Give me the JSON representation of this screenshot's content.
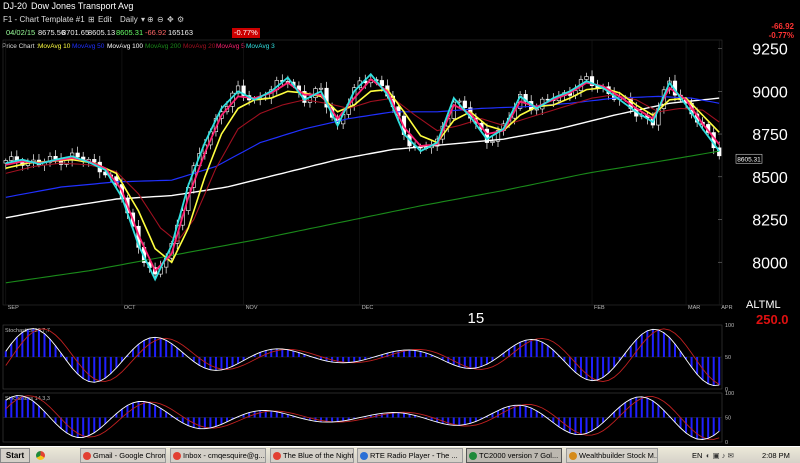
{
  "window": {
    "symbol": "DJ-20",
    "title": "Dow Jones Transport Avg"
  },
  "toolbar": {
    "template": "F1 - Chart Template #1",
    "edit": "Edit",
    "period": "Daily"
  },
  "quote": {
    "date": "04/02/15",
    "open": "8675.56",
    "high": "8701.65",
    "low": "8605.13",
    "last": "8605.31",
    "change": "-66.92",
    "volume": "165163",
    "pct": "-0.77%",
    "rt_change": "-66.92",
    "rt_pct": "-0.77%"
  },
  "legend": {
    "price_chart": "Price Chart :",
    "ma10": "MovAvg 10",
    "ma50": "MovAvg 50",
    "ma100": "MovAvg 100",
    "ma200": "MovAvg 200",
    "ma20": "MovAvg 20",
    "ma5": "MovAvg 5",
    "ma3": "MovAvg 3"
  },
  "colors": {
    "ma10": "#ffff40",
    "ma50": "#2030ff",
    "ma100": "#ffffff",
    "ma200": "#1a8a1a",
    "ma20": "#a01020",
    "ma5": "#ff2070",
    "ma3": "#30e0e0",
    "price": "#ffffff",
    "stoch_bar": "#2020ff"
  },
  "chart_data": {
    "type": "line",
    "x_tick_labels": [
      "SEP",
      "OCT",
      "NOV",
      "DEC",
      "15",
      "FEB",
      "MAR",
      "APR"
    ],
    "y_tick_labels": [
      "9250",
      "9000",
      "8750",
      "8500",
      "8250",
      "8000"
    ],
    "ylim": [
      7750,
      9300
    ],
    "price_marker": "8605.31",
    "overlay": "250.0",
    "overlay_label": "ALTML",
    "series": [
      {
        "name": "MovAvg 3",
        "points": [
          [
            0,
            8580
          ],
          [
            3,
            8600
          ],
          [
            6,
            8575
          ],
          [
            9,
            8600
          ],
          [
            12,
            8620
          ],
          [
            15,
            8585
          ],
          [
            18,
            8540
          ],
          [
            21,
            8380
          ],
          [
            24,
            8100
          ],
          [
            27,
            7900
          ],
          [
            30,
            8100
          ],
          [
            33,
            8450
          ],
          [
            36,
            8700
          ],
          [
            39,
            8900
          ],
          [
            42,
            9000
          ],
          [
            45,
            8950
          ],
          [
            48,
            9000
          ],
          [
            51,
            9080
          ],
          [
            54,
            8950
          ],
          [
            57,
            9000
          ],
          [
            60,
            8800
          ],
          [
            63,
            9000
          ],
          [
            66,
            9100
          ],
          [
            69,
            8980
          ],
          [
            72,
            8750
          ],
          [
            75,
            8650
          ],
          [
            78,
            8700
          ],
          [
            81,
            8960
          ],
          [
            84,
            8850
          ],
          [
            87,
            8720
          ],
          [
            90,
            8780
          ],
          [
            93,
            8970
          ],
          [
            96,
            8900
          ],
          [
            99,
            8960
          ],
          [
            102,
            9000
          ],
          [
            105,
            9060
          ],
          [
            108,
            9020
          ],
          [
            111,
            8950
          ],
          [
            114,
            8880
          ],
          [
            117,
            8820
          ],
          [
            120,
            9050
          ],
          [
            123,
            8920
          ],
          [
            126,
            8780
          ],
          [
            129,
            8650
          ]
        ]
      },
      {
        "name": "MovAvg 5",
        "points": [
          [
            0,
            8570
          ],
          [
            3,
            8590
          ],
          [
            6,
            8580
          ],
          [
            9,
            8595
          ],
          [
            12,
            8610
          ],
          [
            15,
            8590
          ],
          [
            18,
            8550
          ],
          [
            21,
            8420
          ],
          [
            24,
            8160
          ],
          [
            27,
            7950
          ],
          [
            30,
            8050
          ],
          [
            33,
            8380
          ],
          [
            36,
            8640
          ],
          [
            39,
            8860
          ],
          [
            42,
            8970
          ],
          [
            45,
            8960
          ],
          [
            48,
            8990
          ],
          [
            51,
            9050
          ],
          [
            54,
            8980
          ],
          [
            57,
            8980
          ],
          [
            60,
            8840
          ],
          [
            63,
            8960
          ],
          [
            66,
            9070
          ],
          [
            69,
            9000
          ],
          [
            72,
            8790
          ],
          [
            75,
            8680
          ],
          [
            78,
            8690
          ],
          [
            81,
            8920
          ],
          [
            84,
            8870
          ],
          [
            87,
            8750
          ],
          [
            90,
            8770
          ],
          [
            93,
            8940
          ],
          [
            96,
            8910
          ],
          [
            99,
            8950
          ],
          [
            102,
            8990
          ],
          [
            105,
            9050
          ],
          [
            108,
            9030
          ],
          [
            111,
            8970
          ],
          [
            114,
            8900
          ],
          [
            117,
            8840
          ],
          [
            120,
            9020
          ],
          [
            123,
            8950
          ],
          [
            126,
            8810
          ],
          [
            129,
            8690
          ]
        ]
      },
      {
        "name": "MovAvg 10",
        "points": [
          [
            0,
            8550
          ],
          [
            4,
            8580
          ],
          [
            8,
            8590
          ],
          [
            12,
            8600
          ],
          [
            16,
            8580
          ],
          [
            20,
            8520
          ],
          [
            24,
            8300
          ],
          [
            27,
            8080
          ],
          [
            30,
            8000
          ],
          [
            33,
            8200
          ],
          [
            36,
            8500
          ],
          [
            39,
            8750
          ],
          [
            42,
            8900
          ],
          [
            45,
            8950
          ],
          [
            48,
            8960
          ],
          [
            51,
            9000
          ],
          [
            54,
            8990
          ],
          [
            57,
            8970
          ],
          [
            60,
            8880
          ],
          [
            63,
            8920
          ],
          [
            66,
            9000
          ],
          [
            69,
            9010
          ],
          [
            72,
            8880
          ],
          [
            75,
            8740
          ],
          [
            78,
            8700
          ],
          [
            81,
            8830
          ],
          [
            84,
            8880
          ],
          [
            87,
            8800
          ],
          [
            90,
            8770
          ],
          [
            93,
            8860
          ],
          [
            96,
            8910
          ],
          [
            99,
            8920
          ],
          [
            102,
            8960
          ],
          [
            105,
            9010
          ],
          [
            108,
            9020
          ],
          [
            111,
            8990
          ],
          [
            114,
            8920
          ],
          [
            117,
            8860
          ],
          [
            120,
            8950
          ],
          [
            123,
            8960
          ],
          [
            126,
            8860
          ],
          [
            129,
            8760
          ]
        ]
      },
      {
        "name": "MovAvg 20",
        "points": [
          [
            0,
            8520
          ],
          [
            5,
            8560
          ],
          [
            10,
            8580
          ],
          [
            15,
            8570
          ],
          [
            20,
            8530
          ],
          [
            24,
            8400
          ],
          [
            28,
            8200
          ],
          [
            31,
            8120
          ],
          [
            34,
            8250
          ],
          [
            38,
            8550
          ],
          [
            42,
            8780
          ],
          [
            46,
            8870
          ],
          [
            50,
            8920
          ],
          [
            54,
            8950
          ],
          [
            58,
            8930
          ],
          [
            62,
            8900
          ],
          [
            66,
            8940
          ],
          [
            70,
            8960
          ],
          [
            74,
            8860
          ],
          [
            78,
            8770
          ],
          [
            82,
            8800
          ],
          [
            86,
            8840
          ],
          [
            90,
            8800
          ],
          [
            94,
            8840
          ],
          [
            98,
            8880
          ],
          [
            102,
            8920
          ],
          [
            106,
            8960
          ],
          [
            110,
            8980
          ],
          [
            114,
            8950
          ],
          [
            118,
            8880
          ],
          [
            122,
            8900
          ],
          [
            126,
            8890
          ],
          [
            129,
            8820
          ]
        ]
      },
      {
        "name": "MovAvg 50",
        "points": [
          [
            0,
            8380
          ],
          [
            10,
            8440
          ],
          [
            20,
            8470
          ],
          [
            30,
            8480
          ],
          [
            38,
            8560
          ],
          [
            46,
            8700
          ],
          [
            54,
            8780
          ],
          [
            62,
            8840
          ],
          [
            70,
            8880
          ],
          [
            78,
            8880
          ],
          [
            86,
            8900
          ],
          [
            94,
            8910
          ],
          [
            102,
            8930
          ],
          [
            110,
            8960
          ],
          [
            118,
            8970
          ],
          [
            124,
            8960
          ],
          [
            129,
            8930
          ]
        ]
      },
      {
        "name": "MovAvg 100",
        "points": [
          [
            0,
            8260
          ],
          [
            10,
            8320
          ],
          [
            20,
            8370
          ],
          [
            30,
            8390
          ],
          [
            40,
            8440
          ],
          [
            50,
            8520
          ],
          [
            60,
            8600
          ],
          [
            70,
            8660
          ],
          [
            80,
            8690
          ],
          [
            90,
            8720
          ],
          [
            100,
            8780
          ],
          [
            110,
            8860
          ],
          [
            120,
            8930
          ],
          [
            129,
            8960
          ]
        ]
      },
      {
        "name": "MovAvg 200",
        "points": [
          [
            0,
            7880
          ],
          [
            15,
            7950
          ],
          [
            30,
            8040
          ],
          [
            45,
            8130
          ],
          [
            60,
            8230
          ],
          [
            75,
            8330
          ],
          [
            90,
            8420
          ],
          [
            105,
            8520
          ],
          [
            120,
            8600
          ],
          [
            129,
            8650
          ]
        ]
      }
    ]
  },
  "stoch1": {
    "label": "Stochastics 20,7,7",
    "ticks": [
      "100",
      "50",
      "0"
    ]
  },
  "stoch2": {
    "label": "Stochastics 14,3,3",
    "ticks": [
      "100",
      "50",
      "0"
    ]
  },
  "taskbar": {
    "start": "Start",
    "items": [
      {
        "label": "Gmail - Google Chrome",
        "active": false
      },
      {
        "label": "Inbox - cmqesquire@g...",
        "active": false
      },
      {
        "label": "The Blue of the Night w...",
        "active": false
      },
      {
        "label": "RTE Radio Player - The ...",
        "active": false
      },
      {
        "label": "TC2000 version 7 Gol...",
        "active": true
      },
      {
        "label": "Wealthbuilder Stock M...",
        "active": false
      }
    ],
    "lang": "EN",
    "clock": "2:08 PM"
  }
}
